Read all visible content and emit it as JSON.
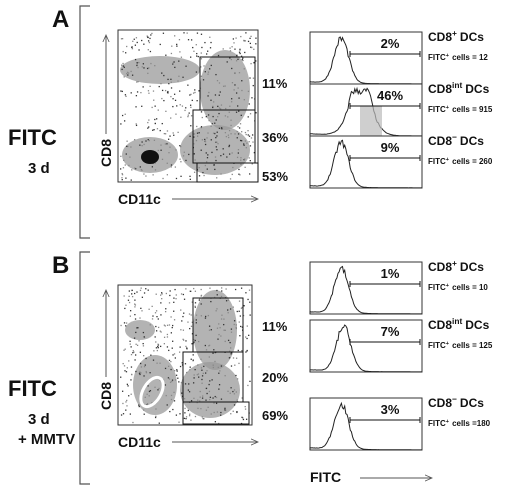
{
  "panels": [
    {
      "letter": "A",
      "treatment": [
        "FITC",
        "3 d"
      ],
      "dotplot": {
        "y_label": "CD8",
        "x_label": "CD11c",
        "gates": [
          "11%",
          "36%",
          "53%"
        ]
      },
      "histograms": [
        {
          "population": {
            "base": "CD8",
            "sup": "+",
            "suffix": "DCs"
          },
          "percent": "2%",
          "count": {
            "base": "FITC",
            "sup": "+",
            "suffix": "cells = 12"
          }
        },
        {
          "population": {
            "base": "CD8",
            "sup": "int",
            "suffix": "DCs"
          },
          "percent": "46%",
          "count": {
            "base": "FITC",
            "sup": "+",
            "suffix": "cells = 915"
          }
        },
        {
          "population": {
            "base": "CD8",
            "sup": "−",
            "suffix": "DCs"
          },
          "percent": "9%",
          "count": {
            "base": "FITC",
            "sup": "+",
            "suffix": "cells = 260"
          }
        }
      ]
    },
    {
      "letter": "B",
      "treatment": [
        "FITC",
        "3 d",
        "+ MMTV"
      ],
      "dotplot": {
        "y_label": "CD8",
        "x_label": "CD11c",
        "gates": [
          "11%",
          "20%",
          "69%"
        ]
      },
      "histograms": [
        {
          "population": {
            "base": "CD8",
            "sup": "+",
            "suffix": "DCs"
          },
          "percent": "1%",
          "count": {
            "base": "FITC",
            "sup": "+",
            "suffix": "cells = 10"
          }
        },
        {
          "population": {
            "base": "CD8",
            "sup": "int",
            "suffix": "DCs"
          },
          "percent": "7%",
          "count": {
            "base": "FITC",
            "sup": "+",
            "suffix": "cells = 125"
          }
        },
        {
          "population": {
            "base": "CD8",
            "sup": "−",
            "suffix": "DCs"
          },
          "percent": "3%",
          "count": {
            "base": "FITC",
            "sup": "+",
            "suffix": "cells =180"
          }
        }
      ]
    }
  ],
  "x_axis_label": "FITC"
}
